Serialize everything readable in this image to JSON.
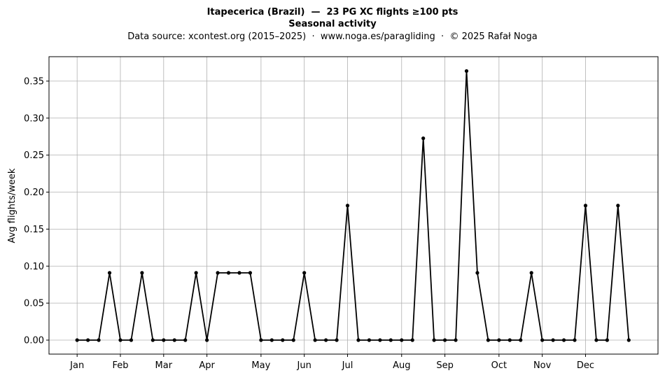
{
  "chart_data": {
    "type": "line",
    "title": "Itapecerica (Brazil)  —  23 PG XC flights ≥100 pts",
    "subtitle": "Seasonal activity",
    "source": "Data source: xcontest.org (2015–2025)  ·  www.noga.es/paragliding  ·  © 2025 Rafał Noga",
    "ylabel": "Avg flights/week",
    "grid": true,
    "xlim": [
      -1.6,
      54.7
    ],
    "ylim": [
      -0.0189,
      0.383
    ],
    "xticks": [
      {
        "value": 1,
        "label": "Jan"
      },
      {
        "value": 5,
        "label": "Feb"
      },
      {
        "value": 9,
        "label": "Mar"
      },
      {
        "value": 13,
        "label": "Apr"
      },
      {
        "value": 18,
        "label": "May"
      },
      {
        "value": 22,
        "label": "Jun"
      },
      {
        "value": 26,
        "label": "Jul"
      },
      {
        "value": 31,
        "label": "Aug"
      },
      {
        "value": 35,
        "label": "Sep"
      },
      {
        "value": 40,
        "label": "Oct"
      },
      {
        "value": 44,
        "label": "Nov"
      },
      {
        "value": 48,
        "label": "Dec"
      }
    ],
    "yticks": [
      {
        "value": 0,
        "label": "0.00"
      },
      {
        "value": 0.05,
        "label": "0.05"
      },
      {
        "value": 0.1,
        "label": "0.10"
      },
      {
        "value": 0.15,
        "label": "0.15"
      },
      {
        "value": 0.2,
        "label": "0.20"
      },
      {
        "value": 0.25,
        "label": "0.25"
      },
      {
        "value": 0.3,
        "label": "0.30"
      },
      {
        "value": 0.35,
        "label": "0.35"
      }
    ],
    "x": [
      1,
      2,
      3,
      4,
      5,
      6,
      7,
      8,
      9,
      10,
      11,
      12,
      13,
      14,
      15,
      16,
      17,
      18,
      19,
      20,
      21,
      22,
      23,
      24,
      25,
      26,
      27,
      28,
      29,
      30,
      31,
      32,
      33,
      34,
      35,
      36,
      37,
      38,
      39,
      40,
      41,
      42,
      43,
      44,
      45,
      46,
      47,
      48,
      49,
      50,
      51,
      52
    ],
    "series": [
      {
        "color": "#000000",
        "values": [
          0,
          0,
          0,
          0.0909,
          0,
          0,
          0.0909,
          0,
          0,
          0,
          0,
          0.0909,
          0,
          0.0909,
          0.0909,
          0.0909,
          0.0909,
          0,
          0,
          0,
          0,
          0.0909,
          0,
          0,
          0,
          0.1818,
          0,
          0,
          0,
          0,
          0,
          0,
          0.2727,
          0,
          0,
          0,
          0.3636,
          0.0909,
          0,
          0,
          0,
          0,
          0.0909,
          0,
          0,
          0,
          0,
          0.1818,
          0,
          0,
          0.1818,
          0
        ]
      }
    ]
  }
}
